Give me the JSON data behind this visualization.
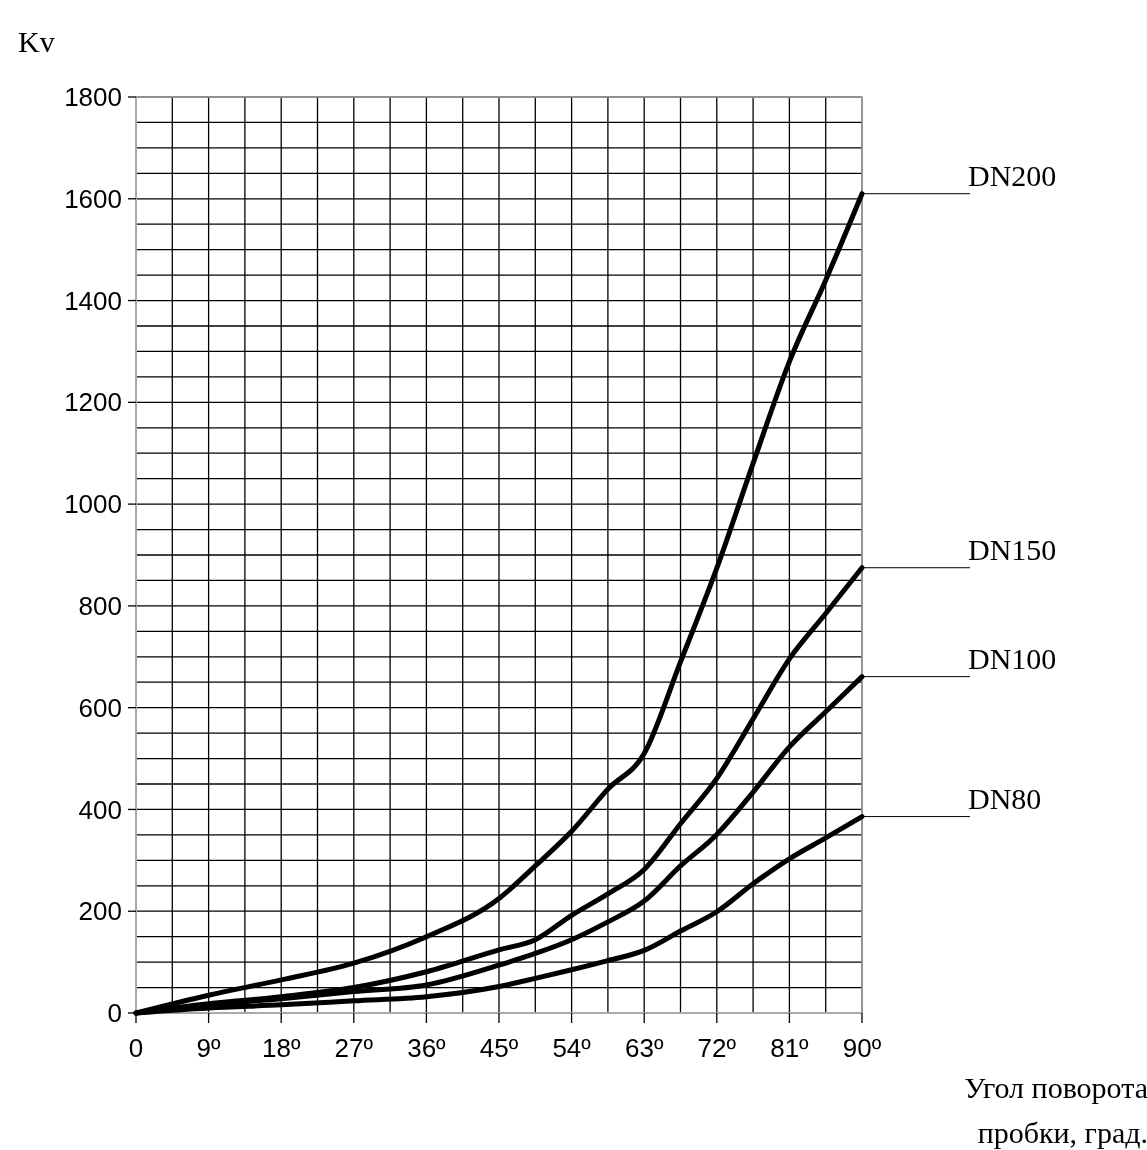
{
  "chart_data": {
    "type": "line",
    "xlabel": "Угол поворота пробки, град.",
    "ylabel": "Kv",
    "x": [
      0,
      9,
      18,
      27,
      36,
      45,
      49.5,
      54,
      58.5,
      63,
      67.5,
      72,
      76.5,
      81,
      85.5,
      90
    ],
    "series": [
      {
        "name": "DN200",
        "color": "#000000",
        "values": [
          0,
          35,
          65,
          98,
          150,
          225,
          289,
          357,
          440,
          510,
          690,
          874,
          1080,
          1280,
          1440,
          1610
        ]
      },
      {
        "name": "DN150",
        "color": "#000000",
        "values": [
          0,
          18,
          32,
          50,
          81,
          124,
          144,
          192,
          234,
          282,
          372,
          461,
          578,
          696,
          785,
          875
        ]
      },
      {
        "name": "DN100",
        "color": "#000000",
        "values": [
          0,
          16,
          28,
          42,
          55,
          94,
          117,
          144,
          179,
          220,
          289,
          351,
          434,
          523,
          592,
          661
        ]
      },
      {
        "name": "DN80",
        "color": "#000000",
        "values": [
          0,
          10,
          16,
          24,
          32,
          52,
          68,
          85,
          103,
          123,
          161,
          199,
          254,
          303,
          344,
          386
        ]
      }
    ],
    "xlim": [
      0,
      90
    ],
    "ylim": [
      0,
      1800
    ],
    "xticks": [
      {
        "value": 0,
        "label": "0"
      },
      {
        "value": 4.5,
        "label": null
      },
      {
        "value": 9,
        "label": "9º"
      },
      {
        "value": 13.5,
        "label": null
      },
      {
        "value": 18,
        "label": "18º"
      },
      {
        "value": 22.5,
        "label": null
      },
      {
        "value": 27,
        "label": "27º"
      },
      {
        "value": 31.5,
        "label": null
      },
      {
        "value": 36,
        "label": "36º"
      },
      {
        "value": 40.5,
        "label": null
      },
      {
        "value": 45,
        "label": "45º"
      },
      {
        "value": 49.5,
        "label": null
      },
      {
        "value": 54,
        "label": "54º"
      },
      {
        "value": 58.5,
        "label": null
      },
      {
        "value": 63,
        "label": "63º"
      },
      {
        "value": 67.5,
        "label": null
      },
      {
        "value": 72,
        "label": "72º"
      },
      {
        "value": 76.5,
        "label": null
      },
      {
        "value": 81,
        "label": "81º"
      },
      {
        "value": 85.5,
        "label": null
      },
      {
        "value": 90,
        "label": "90º"
      }
    ],
    "yticks": [
      0,
      {
        "value": 50,
        "label": null
      },
      {
        "value": 100,
        "label": null
      },
      {
        "value": 150,
        "label": null
      },
      200,
      {
        "value": 250,
        "label": null
      },
      {
        "value": 300,
        "label": null
      },
      {
        "value": 350,
        "label": null
      },
      400,
      {
        "value": 450,
        "label": null
      },
      {
        "value": 500,
        "label": null
      },
      {
        "value": 550,
        "label": null
      },
      600,
      {
        "value": 650,
        "label": null
      },
      {
        "value": 700,
        "label": null
      },
      {
        "value": 750,
        "label": null
      },
      800,
      {
        "value": 850,
        "label": null
      },
      {
        "value": 900,
        "label": null
      },
      {
        "value": 950,
        "label": null
      },
      1000,
      {
        "value": 1050,
        "label": null
      },
      {
        "value": 1100,
        "label": null
      },
      {
        "value": 1150,
        "label": null
      },
      1200,
      {
        "value": 1250,
        "label": null
      },
      {
        "value": 1300,
        "label": null
      },
      {
        "value": 1350,
        "label": null
      },
      1400,
      {
        "value": 1450,
        "label": null
      },
      {
        "value": 1500,
        "label": null
      },
      {
        "value": 1550,
        "label": null
      },
      1600,
      {
        "value": 1650,
        "label": null
      },
      {
        "value": 1700,
        "label": null
      },
      {
        "value": 1750,
        "label": null
      },
      1800
    ],
    "grid": true,
    "legend": "right",
    "marker": "none",
    "line_style": "solid"
  }
}
